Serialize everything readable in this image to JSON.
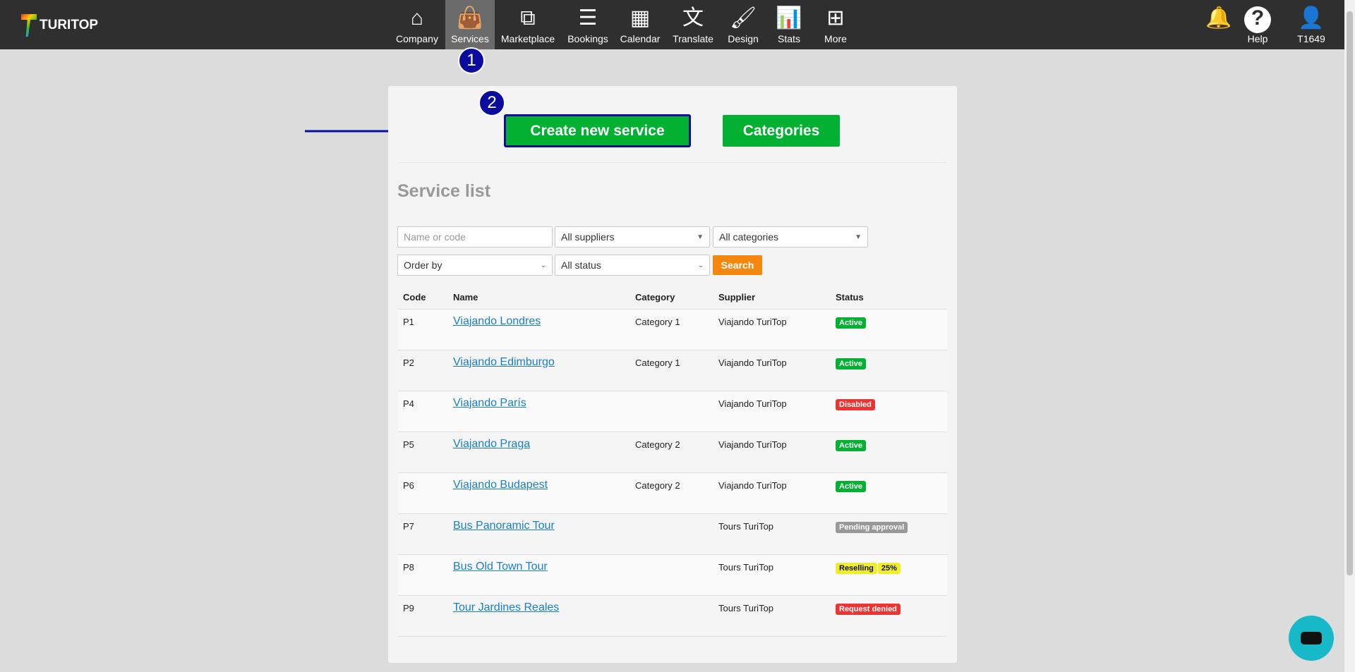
{
  "brand": {
    "name": "TURITOP"
  },
  "nav": [
    {
      "label": "Company",
      "icon": "home-icon",
      "glyph": "⌂"
    },
    {
      "label": "Services",
      "icon": "shopping-bag-icon",
      "glyph": "👜",
      "active": true
    },
    {
      "label": "Marketplace",
      "icon": "sitemap-icon",
      "glyph": "⧉"
    },
    {
      "label": "Bookings",
      "icon": "list-icon",
      "glyph": "☰"
    },
    {
      "label": "Calendar",
      "icon": "calendar-icon",
      "glyph": "▦"
    },
    {
      "label": "Translate",
      "icon": "translate-icon",
      "glyph": "文"
    },
    {
      "label": "Design",
      "icon": "brush-icon",
      "glyph": "🖌"
    },
    {
      "label": "Stats",
      "icon": "bar-chart-icon",
      "glyph": "📊"
    },
    {
      "label": "More",
      "icon": "plus-square-icon",
      "glyph": "⊞"
    }
  ],
  "right_nav": {
    "bell_glyph": "🔔",
    "help": "Help",
    "help_glyph": "?",
    "user": "T1649",
    "user_glyph": "👤"
  },
  "markers": {
    "one": "1",
    "two": "2"
  },
  "actions": {
    "create": "Create new service",
    "categories": "Categories"
  },
  "title": "Service list",
  "filters": {
    "name_placeholder": "Name or code",
    "suppliers": "All suppliers",
    "categories": "All categories",
    "order": "Order by",
    "status": "All status",
    "search": "Search"
  },
  "columns": [
    "Code",
    "Name",
    "Category",
    "Supplier",
    "Status"
  ],
  "rows": [
    {
      "code": "P1",
      "name": "Viajando Londres",
      "category": "Category 1",
      "supplier": "Viajando TuriTop",
      "status": "Active",
      "color": "#02b131"
    },
    {
      "code": "P2",
      "name": "Viajando Edimburgo",
      "category": "Category 1",
      "supplier": "Viajando TuriTop",
      "status": "Active",
      "color": "#02b131"
    },
    {
      "code": "P4",
      "name": "Viajando París",
      "category": "",
      "supplier": "Viajando TuriTop",
      "status": "Disabled",
      "color": "#ee3333"
    },
    {
      "code": "P5",
      "name": "Viajando Praga",
      "category": "Category 2",
      "supplier": "Viajando TuriTop",
      "status": "Active",
      "color": "#02b131"
    },
    {
      "code": "P6",
      "name": "Viajando Budapest",
      "category": "Category 2",
      "supplier": "Viajando TuriTop",
      "status": "Active",
      "color": "#02b131"
    },
    {
      "code": "P7",
      "name": "Bus Panoramic Tour",
      "category": "",
      "supplier": "Tours TuriTop",
      "status": "Pending approval",
      "color": "#999999"
    },
    {
      "code": "P8",
      "name": "Bus Old Town Tour",
      "category": "",
      "supplier": "Tours TuriTop",
      "status": "Reselling",
      "extra": "25%",
      "color": "#f0ee2a"
    },
    {
      "code": "P9",
      "name": "Tour Jardines Reales",
      "category": "",
      "supplier": "Tours TuriTop",
      "status": "Request denied",
      "color": "#ee3333"
    }
  ]
}
